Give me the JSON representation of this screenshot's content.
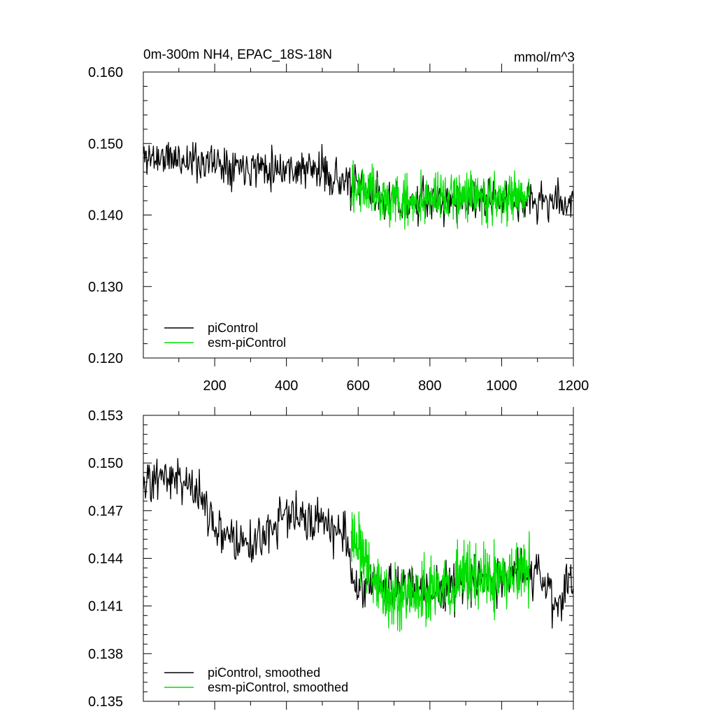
{
  "figure": {
    "title": "0m-300m NH4, EPAC_18S-18N",
    "units": "mmol/m^3"
  },
  "chart_data": [
    {
      "type": "line",
      "title": "0m-300m NH4, EPAC_18S-18N",
      "units": "mmol/m^3",
      "xlim": [
        1,
        1200
      ],
      "ylim": [
        0.12,
        0.16
      ],
      "x_ticks": [
        200,
        400,
        600,
        800,
        1000,
        1200
      ],
      "x_tick_labels": [
        "200",
        "400",
        "600",
        "800",
        "1000",
        "1200"
      ],
      "y_ticks": [
        0.12,
        0.13,
        0.14,
        0.15,
        0.16
      ],
      "y_tick_labels": [
        "0.120",
        "0.130",
        "0.140",
        "0.150",
        "0.160"
      ],
      "legend_position": "bottom-left",
      "series": [
        {
          "name": "piControl",
          "color": "#000000",
          "x_range": [
            1,
            1200
          ],
          "samples_per_point": 2,
          "trend": [
            [
              1,
              0.1482
            ],
            [
              500,
              0.1462
            ],
            [
              580,
              0.1441
            ],
            [
              700,
              0.1418
            ],
            [
              900,
              0.142
            ],
            [
              1200,
              0.1418
            ]
          ],
          "noise_amplitude": 0.0042,
          "seed": 11
        },
        {
          "name": "esm-piControl",
          "color": "#00e000",
          "x_range": [
            580,
            1080
          ],
          "samples_per_point": 1,
          "trend": [
            [
              580,
              0.1442
            ],
            [
              700,
              0.1418
            ],
            [
              900,
              0.1425
            ],
            [
              1080,
              0.1425
            ]
          ],
          "noise_amplitude": 0.0052,
          "seed": 29
        }
      ]
    },
    {
      "type": "line",
      "xlim": [
        1,
        1200
      ],
      "ylim": [
        0.135,
        0.153
      ],
      "x_ticks": [
        200,
        400,
        600,
        800,
        1000,
        1200
      ],
      "y_ticks": [
        0.135,
        0.138,
        0.141,
        0.144,
        0.147,
        0.15,
        0.153
      ],
      "y_tick_labels": [
        "0.135",
        "0.138",
        "0.141",
        "0.144",
        "0.147",
        "0.150",
        "0.153"
      ],
      "legend_position": "bottom-left",
      "series": [
        {
          "name": "piControl, smoothed",
          "color": "#000000",
          "x_range": [
            1,
            1200
          ],
          "samples_per_point": 2,
          "trend": [
            [
              1,
              0.1488
            ],
            [
              60,
              0.1495
            ],
            [
              150,
              0.1482
            ],
            [
              200,
              0.1462
            ],
            [
              290,
              0.1448
            ],
            [
              400,
              0.1468
            ],
            [
              480,
              0.1465
            ],
            [
              560,
              0.1455
            ],
            [
              590,
              0.1425
            ],
            [
              650,
              0.1425
            ],
            [
              800,
              0.1418
            ],
            [
              950,
              0.1425
            ],
            [
              1100,
              0.143
            ],
            [
              1150,
              0.1412
            ],
            [
              1200,
              0.1428
            ]
          ],
          "noise_amplitude": 0.0022,
          "seed": 47
        },
        {
          "name": "esm-piControl, smoothed",
          "color": "#00e000",
          "x_range": [
            580,
            1080
          ],
          "samples_per_point": 1,
          "trend": [
            [
              580,
              0.1455
            ],
            [
              650,
              0.1425
            ],
            [
              700,
              0.1412
            ],
            [
              800,
              0.1418
            ],
            [
              900,
              0.1432
            ],
            [
              1000,
              0.1425
            ],
            [
              1080,
              0.1432
            ]
          ],
          "noise_amplitude": 0.003,
          "seed": 83
        }
      ]
    }
  ]
}
